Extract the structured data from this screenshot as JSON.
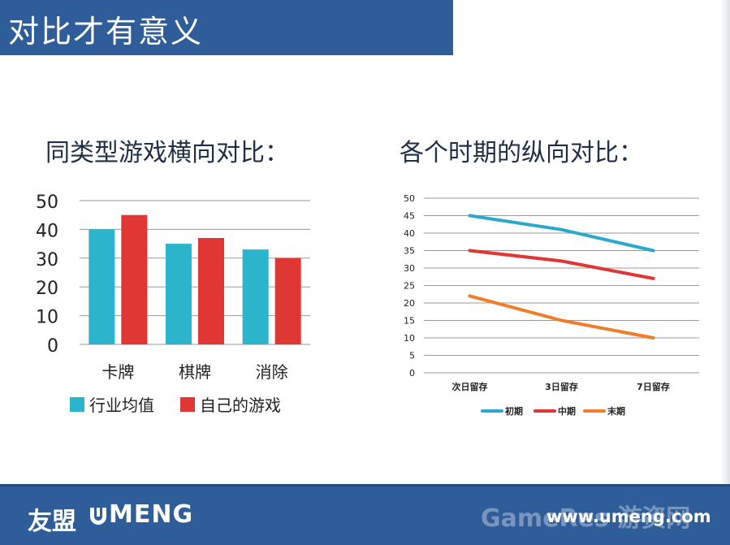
{
  "slide": {
    "title": "对比才有意义",
    "heading_left": "同类型游戏横向对比：",
    "heading_right": "各个时期的纵向对比："
  },
  "chart_data": [
    {
      "type": "bar",
      "categories": [
        "卡牌",
        "棋牌",
        "消除"
      ],
      "series": [
        {
          "name": "行业均值",
          "values": [
            40,
            35,
            33
          ],
          "color": "#2bb5cd"
        },
        {
          "name": "自己的游戏",
          "values": [
            45,
            37,
            30
          ],
          "color": "#e03634"
        }
      ],
      "ylim": [
        0,
        50
      ],
      "yticks": [
        0,
        10,
        20,
        30,
        40,
        50
      ],
      "grid": true,
      "legend": "bottom"
    },
    {
      "type": "line",
      "categories": [
        "次日留存",
        "3日留存",
        "7日留存"
      ],
      "series": [
        {
          "name": "初期",
          "values": [
            45,
            41,
            35
          ],
          "color": "#2aa9cc"
        },
        {
          "name": "中期",
          "values": [
            35,
            32,
            27
          ],
          "color": "#e03634"
        },
        {
          "name": "末期",
          "values": [
            22,
            15,
            10
          ],
          "color": "#f07d2a"
        }
      ],
      "ylim": [
        0,
        50
      ],
      "yticks": [
        0,
        5,
        10,
        15,
        20,
        25,
        30,
        35,
        40,
        45,
        50
      ],
      "grid": true,
      "legend": "bottom"
    }
  ],
  "footer": {
    "logo_cn": "友盟",
    "logo_en": "MENG",
    "watermark": "GameRes 游资网",
    "website": "www.umeng.com"
  }
}
